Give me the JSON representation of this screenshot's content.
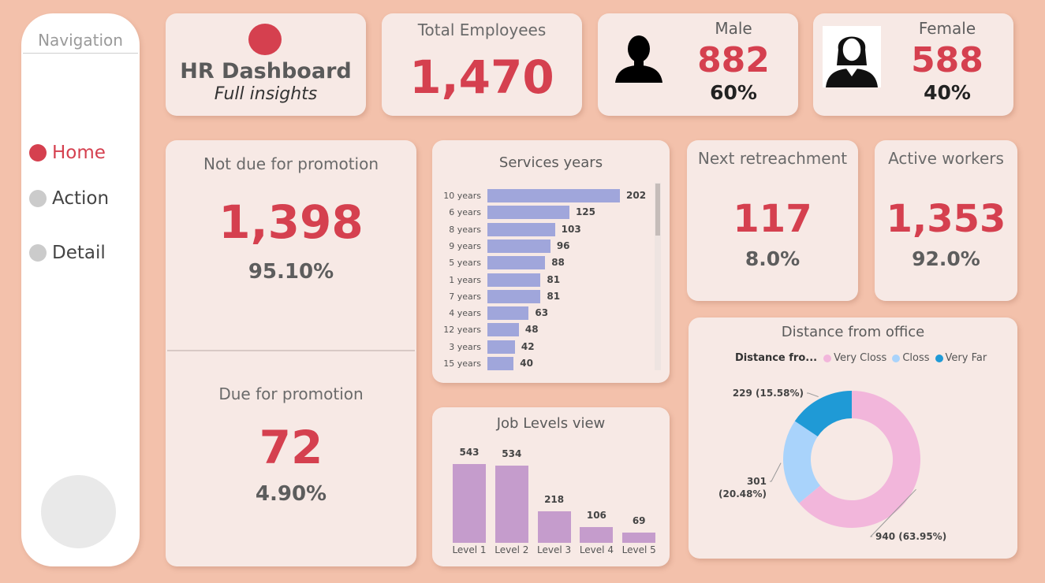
{
  "nav": {
    "title": "Navigation",
    "items": [
      {
        "label": "Home",
        "active": true
      },
      {
        "label": "Action",
        "active": false
      },
      {
        "label": "Detail",
        "active": false
      }
    ]
  },
  "header": {
    "title": "HR Dashboard",
    "subtitle": "Full insights"
  },
  "total": {
    "label": "Total Employees",
    "value": "1,470"
  },
  "male": {
    "label": "Male",
    "value": "882",
    "pct": "60%"
  },
  "female": {
    "label": "Female",
    "value": "588",
    "pct": "40%"
  },
  "not_due": {
    "label": "Not due for promotion",
    "value": "1,398",
    "pct": "95.10%"
  },
  "due": {
    "label": "Due for promotion",
    "value": "72",
    "pct": "4.90%"
  },
  "retreat": {
    "label": "Next retreachment",
    "value": "117",
    "pct": "8.0%"
  },
  "active": {
    "label": "Active workers",
    "value": "1,353",
    "pct": "92.0%"
  },
  "colors": {
    "accent": "#d5404f",
    "bar": "#a0a6db",
    "column": "#c59ccc",
    "very_closs": "#f2b6db",
    "closs": "#a9d3fb",
    "very_far": "#1f9ad6"
  },
  "chart_data": [
    {
      "type": "bar",
      "title": "Services years",
      "orientation": "horizontal",
      "categories": [
        "10 years",
        "6 years",
        "8 years",
        "9 years",
        "5 years",
        "1 years",
        "7 years",
        "4 years",
        "12 years",
        "3 years",
        "15 years"
      ],
      "values": [
        202,
        125,
        103,
        96,
        88,
        81,
        81,
        63,
        48,
        42,
        40
      ]
    },
    {
      "type": "bar",
      "title": "Job Levels view",
      "categories": [
        "Level 1",
        "Level 2",
        "Level 3",
        "Level 4",
        "Level 5"
      ],
      "values": [
        543,
        534,
        218,
        106,
        69
      ]
    },
    {
      "type": "pie",
      "title": "Distance from office",
      "legend_title": "Distance fro...",
      "legend_position": "top",
      "categories": [
        "Very Closs",
        "Closs",
        "Very Far"
      ],
      "values": [
        940,
        301,
        229
      ],
      "labels": [
        "940 (63.95%)",
        "301 (20.48%)",
        "229 (15.58%)"
      ]
    }
  ]
}
